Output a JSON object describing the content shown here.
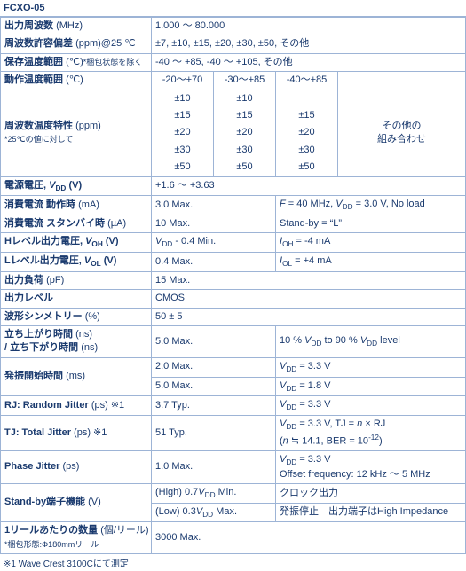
{
  "title": "FCXO-05",
  "rows": {
    "out_freq": {
      "label": "出力周波数",
      "unit": "(MHz)",
      "val": "1.000 ～ 80.000"
    },
    "freq_tol": {
      "label": "周波数許容偏差",
      "unit": "(ppm)@25 ℃",
      "val": "±7, ±10, ±15, ±20, ±30, ±50, その他"
    },
    "storage": {
      "label": "保存温度範囲",
      "unit": "(℃)",
      "sub": "*梱包状態を除く",
      "val": "-40 ～ +85, -40 ～ +105, その他"
    },
    "op_temp": {
      "label": "動作温度範囲",
      "unit": "(℃)",
      "c1": "-20～+70",
      "c2": "-30～+85",
      "c3": "-40～+85"
    },
    "tempco": {
      "label": "周波数温度特性",
      "unit": "(ppm)",
      "sub": "*25℃の値に対して",
      "rows": [
        [
          "±10",
          "±10",
          "",
          ""
        ],
        [
          "±15",
          "±15",
          "±15",
          ""
        ],
        [
          "±20",
          "±20",
          "±20",
          ""
        ],
        [
          "±30",
          "±30",
          "±30",
          ""
        ],
        [
          "±50",
          "±50",
          "±50",
          ""
        ]
      ],
      "other": "その他の\n組み合わせ"
    },
    "vdd": {
      "label_html": "電源電圧, <b>V</b><sub>DD</sub> (V)",
      "val": "+1.6 ～ +3.63"
    },
    "i_op": {
      "label": "消費電流 動作時",
      "unit": "(mA)",
      "val": "3.0 Max.",
      "cond_html": "<i>F</i> = 40 MHz, <i>V</i><sub>DD</sub> = 3.0 V, No load"
    },
    "i_sb": {
      "label": "消費電流 スタンバイ時",
      "unit": "(µA)",
      "val": "10 Max.",
      "cond": "Stand-by = “L”"
    },
    "voh": {
      "label_html": "Hレベル出力電圧, <b>V</b><sub>OH</sub> (V)",
      "val_html": "<i>V</i><sub>DD</sub> - 0.4 Min.",
      "cond_html": "<i>I</i><sub>OH</sub> = -4 mA"
    },
    "vol": {
      "label_html": "Lレベル出力電圧, <b>V</b><sub>OL</sub> (V)",
      "val": "0.4 Max.",
      "cond_html": "<i>I</i><sub>OL</sub> = +4 mA"
    },
    "load": {
      "label": "出力負荷",
      "unit": "(pF)",
      "val": "15 Max."
    },
    "level": {
      "label": "出力レベル",
      "val": "CMOS"
    },
    "sym": {
      "label": "波形シンメトリー",
      "unit": "(%)",
      "val": "50 ± 5"
    },
    "rise": {
      "label": "立ち上がり時間 (ns)\n/ 立ち下がり時間",
      "unit": "(ns)",
      "val": "5.0 Max.",
      "cond_html": "10 % <i>V</i><sub>DD</sub> to 90 % <i>V</i><sub>DD</sub> level"
    },
    "startup": {
      "label": "発振開始時間",
      "unit": "(ms)",
      "v1": "2.0 Max.",
      "c1_html": "<i>V</i><sub>DD</sub> = 3.3 V",
      "v2": "5.0 Max.",
      "c2_html": "<i>V</i><sub>DD</sub> = 1.8 V"
    },
    "rj": {
      "label": "RJ: Random Jitter",
      "unit": "(ps) ※1",
      "val": "3.7 Typ.",
      "cond_html": "<i>V</i><sub>DD</sub> = 3.3 V"
    },
    "tj": {
      "label": "TJ: Total Jitter",
      "unit": "(ps) ※1",
      "val": "51 Typ.",
      "cond_html": "<i>V</i><sub>DD</sub> = 3.3 V, TJ = <i>n</i> × RJ<br>(<i>n</i> ≒ 14.1, BER = 10<sup>-12</sup>)"
    },
    "pj": {
      "label": "Phase Jitter",
      "unit": "(ps)",
      "val": "1.0 Max.",
      "cond_html": "<i>V</i><sub>DD</sub> = 3.3 V<br>Offset frequency: 12 kHz ～ 5 MHz"
    },
    "standby": {
      "label": "Stand-by端子機能",
      "unit": "(V)",
      "v1_html": "(High) 0.7<i>V</i><sub>DD</sub> Min.",
      "c1": "クロック出力",
      "v2_html": "(Low) 0.3<i>V</i><sub>DD</sub> Max.",
      "c2": "発振停止　出力端子はHigh Impedance"
    },
    "qty": {
      "label": "1リールあたりの数量",
      "unit_html": "(個/リール)",
      "sub": "*梱包形態:Φ180mmリール",
      "val": "3000 Max."
    }
  },
  "footnote": "※1 Wave Crest 3100Cにて測定"
}
